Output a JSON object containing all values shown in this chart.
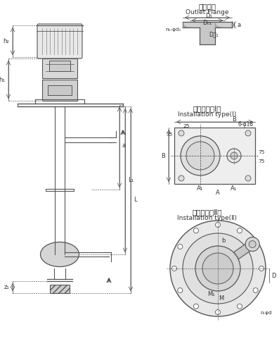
{
  "title_cn": "出口法兰",
  "title_en": "Outlet Flange",
  "install1_cn": "安装形式（Ⅰ）",
  "install1_en": "Installation type(Ⅰ)",
  "install2_cn": "安装形式（Ⅱ）",
  "install2_en": "Installation type(Ⅱ)",
  "bg_color": "#ffffff",
  "line_color": "#555555",
  "dim_color": "#444444",
  "font_size_label": 6.5,
  "font_size_title_cn": 7.5,
  "font_size_title_en": 6.5
}
